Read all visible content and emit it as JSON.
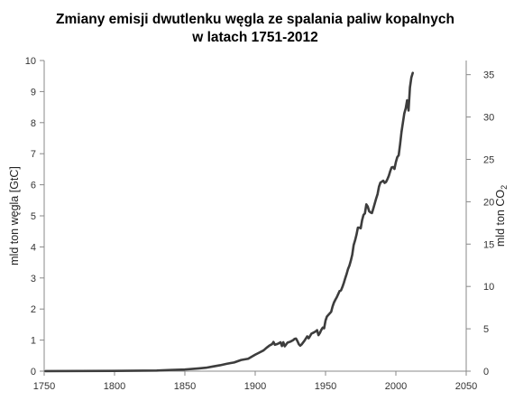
{
  "chart_data": {
    "type": "line",
    "title_line1": "Zmiany emisji dwutlenku węgla ze spalania paliw kopalnych",
    "title_line2": "w latach 1751-2012",
    "ylabel_left": "mld ton węgla [GtC]",
    "ylabel_right_text": "mld ton CO",
    "ylabel_right_sub": "2",
    "xlim": [
      1750,
      2050
    ],
    "ylim_left": [
      0,
      10
    ],
    "ylim_right": [
      0,
      36.67
    ],
    "x_ticks": [
      "1750",
      "1800",
      "1850",
      "1900",
      "1950",
      "2000",
      "2050"
    ],
    "y_ticks_left": [
      "0",
      "1",
      "2",
      "3",
      "4",
      "5",
      "6",
      "7",
      "8",
      "9",
      "10"
    ],
    "y_ticks_right": [
      "0",
      "5",
      "10",
      "15",
      "20",
      "25",
      "30",
      "35"
    ],
    "grid": false,
    "line_color": "#3d3d3d",
    "series": [
      {
        "x": [
          1751,
          1800,
          1830,
          1840,
          1850,
          1855,
          1860,
          1865,
          1870,
          1875,
          1880,
          1885,
          1890,
          1895,
          1900,
          1903,
          1906,
          1908,
          1910,
          1912,
          1913,
          1914,
          1916,
          1918,
          1919,
          1920,
          1921,
          1923,
          1925,
          1927,
          1928,
          1929,
          1930,
          1931,
          1932,
          1933,
          1935,
          1937,
          1938,
          1939,
          1940,
          1941,
          1943,
          1944,
          1945,
          1946,
          1947,
          1948,
          1949,
          1950,
          1951,
          1952,
          1953,
          1954,
          1955,
          1956,
          1957,
          1958,
          1959,
          1960,
          1961,
          1962,
          1963,
          1964,
          1965,
          1966,
          1967,
          1968,
          1969,
          1970,
          1971,
          1972,
          1973,
          1974,
          1975,
          1976,
          1977,
          1978,
          1979,
          1980,
          1981,
          1982,
          1983,
          1984,
          1985,
          1986,
          1987,
          1988,
          1989,
          1990,
          1991,
          1992,
          1993,
          1994,
          1995,
          1996,
          1997,
          1998,
          1999,
          2000,
          2001,
          2002,
          2003,
          2004,
          2005,
          2006,
          2007,
          2008,
          2009,
          2010,
          2011,
          2012
        ],
        "values": [
          0.003,
          0.008,
          0.02,
          0.04,
          0.054,
          0.07,
          0.09,
          0.11,
          0.15,
          0.19,
          0.24,
          0.28,
          0.36,
          0.4,
          0.53,
          0.6,
          0.67,
          0.75,
          0.82,
          0.87,
          0.94,
          0.85,
          0.88,
          0.93,
          0.81,
          0.93,
          0.8,
          0.92,
          0.95,
          1.0,
          1.04,
          1.05,
          0.97,
          0.87,
          0.82,
          0.86,
          0.98,
          1.12,
          1.06,
          1.13,
          1.21,
          1.23,
          1.28,
          1.32,
          1.16,
          1.23,
          1.33,
          1.4,
          1.38,
          1.63,
          1.76,
          1.81,
          1.86,
          1.91,
          2.08,
          2.21,
          2.3,
          2.38,
          2.48,
          2.58,
          2.6,
          2.71,
          2.84,
          2.99,
          3.13,
          3.29,
          3.4,
          3.56,
          3.75,
          4.06,
          4.21,
          4.39,
          4.62,
          4.62,
          4.6,
          4.86,
          5.03,
          5.08,
          5.37,
          5.3,
          5.15,
          5.11,
          5.09,
          5.24,
          5.4,
          5.56,
          5.7,
          5.94,
          6.07,
          6.1,
          6.13,
          6.06,
          6.09,
          6.18,
          6.29,
          6.44,
          6.56,
          6.57,
          6.51,
          6.73,
          6.89,
          6.95,
          7.3,
          7.7,
          8.0,
          8.3,
          8.46,
          8.72,
          8.39,
          9.13,
          9.45,
          9.6
        ]
      }
    ]
  }
}
